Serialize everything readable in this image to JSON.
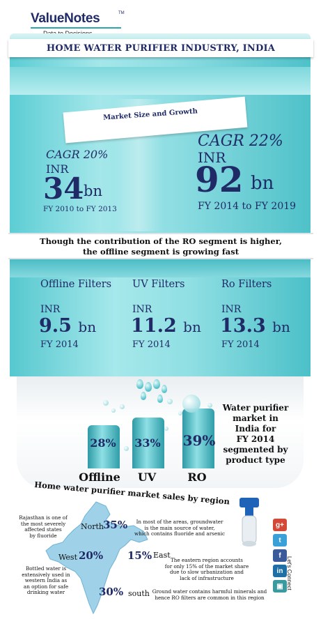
{
  "brand": {
    "name": "ValueNotes",
    "tm": "TM",
    "tagline": "Data to Decisions..."
  },
  "title": "HOME WATER PURIFIER INDUSTRY, INDIA",
  "market": {
    "label": "Market Size and Growth",
    "left": {
      "cagr": "CAGR 20%",
      "inr": "INR",
      "value": "34",
      "unit": "bn",
      "fy_from": "FY 2010",
      "to": "to",
      "fy_to": "FY 2013"
    },
    "right": {
      "cagr": "CAGR 22%",
      "inr": "INR",
      "value": "92",
      "unit": "bn",
      "fy_from": "FY 2014",
      "to": "to",
      "fy_to": "FY 2019"
    }
  },
  "headline": {
    "line1": "Though the contribution of the RO segment is higher,",
    "line2": "the offline segment is growing fast"
  },
  "segments": [
    {
      "title": "Offline Filters",
      "inr": "INR",
      "value": "9.5",
      "unit": "bn",
      "fy": "FY 2014"
    },
    {
      "title": "UV Filters",
      "inr": "INR",
      "value": "11.2",
      "unit": "bn",
      "fy": "FY 2014"
    },
    {
      "title": "Ro Filters",
      "inr": "INR",
      "value": "13.3",
      "unit": "bn",
      "fy": "FY 2014"
    }
  ],
  "share": {
    "caption": [
      "Water purifier",
      "market in",
      "India for",
      "FY 2014",
      "segmented by",
      "product type"
    ],
    "items": [
      {
        "category": "Offline",
        "percent": "28%",
        "value": 28
      },
      {
        "category": "UV",
        "percent": "33%",
        "value": 33
      },
      {
        "category": "RO",
        "percent": "39%",
        "value": 39
      }
    ]
  },
  "regions": {
    "title": "Home water purifier market sales by region",
    "north": {
      "label": "North",
      "percent": "35%"
    },
    "west": {
      "label": "West",
      "percent": "20%"
    },
    "east": {
      "label": "East",
      "percent": "15%"
    },
    "south": {
      "label": "south",
      "percent": "30%"
    },
    "notes": {
      "rajasthan": [
        "Rajasthan is one of",
        "the most severely",
        "affected states",
        "by fluoride"
      ],
      "north": [
        "In most of the areas, groundwater",
        "is the main source of water,",
        "which contains fluoride and arsenic"
      ],
      "west": [
        "Bottled water is",
        "extensively used in",
        "western India as",
        "an option  for safe",
        "drinking water"
      ],
      "east": [
        "The eastern region accounts",
        "for only 15% of the market share",
        "due to slow urbanization and",
        "lack of infrastructure"
      ],
      "south": [
        "Ground water contains  harmful minerals and",
        "hence RO filters are common in this region"
      ]
    }
  },
  "social": {
    "connect": "Let's Connect",
    "icons": [
      {
        "name": "google-plus-icon",
        "glyph": "g+",
        "color": "#d34836"
      },
      {
        "name": "twitter-icon",
        "glyph": "t",
        "color": "#3aa0d8"
      },
      {
        "name": "facebook-icon",
        "glyph": "f",
        "color": "#3b5a9a"
      },
      {
        "name": "linkedin-icon",
        "glyph": "in",
        "color": "#1d6fa5"
      },
      {
        "name": "slideshare-icon",
        "glyph": "▣",
        "color": "#3a9aa0"
      }
    ]
  }
}
